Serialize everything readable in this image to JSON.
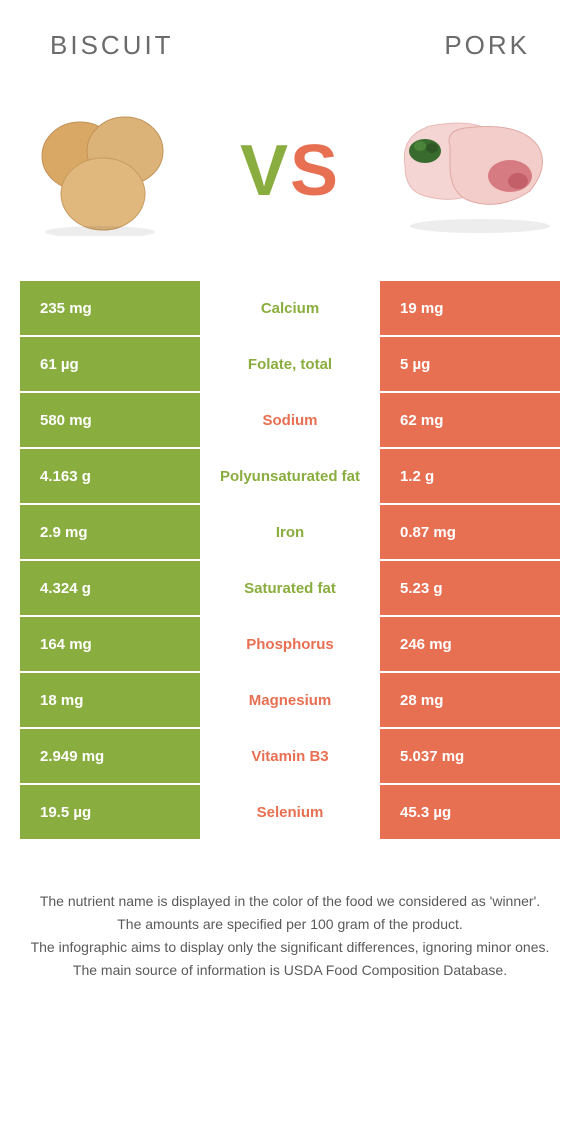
{
  "header": {
    "left": "Biscuit",
    "right": "Pork"
  },
  "vs": {
    "v": "V",
    "s": "S"
  },
  "colors": {
    "left": "#8aad3f",
    "right": "#e87052",
    "text": "#5a5a5a",
    "bg": "#ffffff"
  },
  "nutrients": [
    {
      "label": "Calcium",
      "left": "235 mg",
      "right": "19 mg",
      "winner": "left"
    },
    {
      "label": "Folate, total",
      "left": "61 µg",
      "right": "5 µg",
      "winner": "left"
    },
    {
      "label": "Sodium",
      "left": "580 mg",
      "right": "62 mg",
      "winner": "right"
    },
    {
      "label": "Polyunsaturated fat",
      "left": "4.163 g",
      "right": "1.2 g",
      "winner": "left"
    },
    {
      "label": "Iron",
      "left": "2.9 mg",
      "right": "0.87 mg",
      "winner": "left"
    },
    {
      "label": "Saturated fat",
      "left": "4.324 g",
      "right": "5.23 g",
      "winner": "left"
    },
    {
      "label": "Phosphorus",
      "left": "164 mg",
      "right": "246 mg",
      "winner": "right"
    },
    {
      "label": "Magnesium",
      "left": "18 mg",
      "right": "28 mg",
      "winner": "right"
    },
    {
      "label": "Vitamin B3",
      "left": "2.949 mg",
      "right": "5.037 mg",
      "winner": "right"
    },
    {
      "label": "Selenium",
      "left": "19.5 µg",
      "right": "45.3 µg",
      "winner": "right"
    }
  ],
  "footer": {
    "l1": "The nutrient name is displayed in the color of the food we considered as 'winner'.",
    "l2": "The amounts are specified per 100 gram of the product.",
    "l3": "The infographic aims to display only the significant differences, ignoring minor ones.",
    "l4": "The main source of information is USDA Food Composition Database."
  }
}
